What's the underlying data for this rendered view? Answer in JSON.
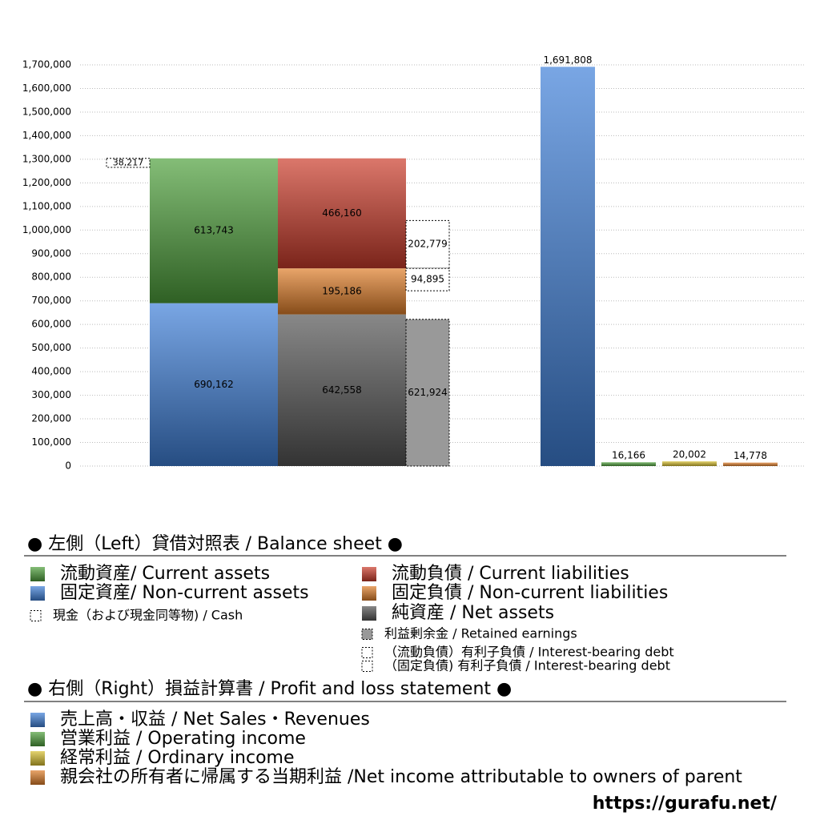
{
  "chart_data": {
    "type": "bar",
    "ylim": [
      0,
      1700000
    ],
    "yticks": [
      {
        "value": 0,
        "label": "0"
      },
      {
        "value": 100000,
        "label": "100,000"
      },
      {
        "value": 200000,
        "label": "200,000"
      },
      {
        "value": 300000,
        "label": "300,000"
      },
      {
        "value": 400000,
        "label": "400,000"
      },
      {
        "value": 500000,
        "label": "500,000"
      },
      {
        "value": 600000,
        "label": "600,000"
      },
      {
        "value": 700000,
        "label": "700,000"
      },
      {
        "value": 800000,
        "label": "800,000"
      },
      {
        "value": 900000,
        "label": "900,000"
      },
      {
        "value": 1000000,
        "label": "1,000,000"
      },
      {
        "value": 1100000,
        "label": "1,100,000"
      },
      {
        "value": 1200000,
        "label": "1,200,000"
      },
      {
        "value": 1300000,
        "label": "1,300,000"
      },
      {
        "value": 1400000,
        "label": "1,400,000"
      },
      {
        "value": 1500000,
        "label": "1,500,000"
      },
      {
        "value": 1600000,
        "label": "1,600,000"
      },
      {
        "value": 1700000,
        "label": "1,700,000"
      }
    ],
    "grid": true,
    "balance_sheet": {
      "title": "● 左側（Left）貸借対照表 / Balance sheet ●",
      "series": [
        {
          "name": "流動資産/ Current assets",
          "color": "#4fa03c",
          "values": [
            613743
          ],
          "value_labels": [
            "613,743"
          ]
        },
        {
          "name": "固定資産/ Non-current assets",
          "color": "#3f80d8",
          "values": [
            690162
          ],
          "value_labels": [
            "690,162"
          ]
        },
        {
          "name": "現金（および現金同等物) / Cash",
          "color": "#ffffff",
          "values": [
            38217
          ],
          "value_labels": [
            "38,217"
          ]
        },
        {
          "name": "流動負債 /  Current liabilities",
          "color": "#cc3c2c",
          "values": [
            466160
          ],
          "value_labels": [
            "466,160"
          ]
        },
        {
          "name": "固定負債 / Non-current liabilities",
          "color": "#e07f2a",
          "values": [
            195186
          ],
          "value_labels": [
            "195,186"
          ]
        },
        {
          "name": "純資産 / Net assets",
          "color": "#555555",
          "values": [
            642558
          ],
          "value_labels": [
            "642,558"
          ]
        },
        {
          "name": "利益剰余金 / Retained earnings",
          "color": "#999999",
          "values": [
            621924
          ],
          "value_labels": [
            "621,924"
          ]
        },
        {
          "name": "（流動負債）有利子負債 / Interest-bearing debt",
          "color": "#ffffff",
          "values": [
            202779
          ],
          "value_labels": [
            "202,779"
          ]
        },
        {
          "name": "（固定負債) 有利子負債 / Interest-bearing debt",
          "color": "#ffffff",
          "values": [
            94895
          ],
          "value_labels": [
            "94,895"
          ]
        }
      ]
    },
    "profit_and_loss": {
      "title": "● 右側（Right）損益計算書 / Profit and loss statement ●",
      "series": [
        {
          "name": "売上高・収益 / Net Sales・Revenues",
          "color": "#3f80d8",
          "values": [
            1691808
          ],
          "value_labels": [
            "1,691,808"
          ]
        },
        {
          "name": "営業利益 / Operating income",
          "color": "#4fa03c",
          "values": [
            16166
          ],
          "value_labels": [
            "16,166"
          ]
        },
        {
          "name": "経常利益 / Ordinary income",
          "color": "#d8c030",
          "values": [
            20002
          ],
          "value_labels": [
            "20,002"
          ]
        },
        {
          "name": "親会社の所有者に帰属する当期利益 /Net income attributable to owners of parent",
          "color": "#e07f2a",
          "values": [
            14778
          ],
          "value_labels": [
            "14,778"
          ]
        }
      ]
    },
    "source": "https://gurafu.net/"
  }
}
